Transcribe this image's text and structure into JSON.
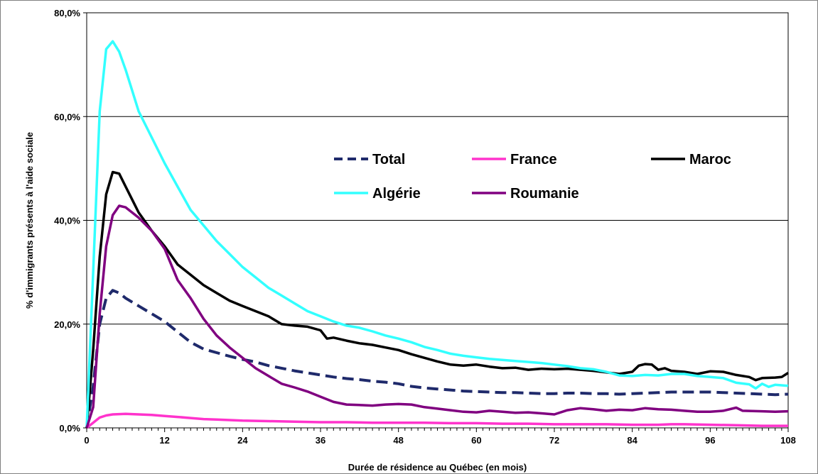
{
  "chart_data": {
    "type": "line",
    "title": "",
    "xlabel": "Durée de résidence au Québec (en mois)",
    "ylabel": "% d'immigrants présents à l'aide sociale",
    "xlim": [
      0,
      108
    ],
    "ylim": [
      0,
      80
    ],
    "x_ticks": [
      "0",
      "12",
      "24",
      "36",
      "48",
      "60",
      "72",
      "84",
      "96",
      "108"
    ],
    "y_ticks": [
      "0,0%",
      "20,0%",
      "40,0%",
      "60,0%",
      "80,0%"
    ],
    "grid": "horizontal",
    "legend_position": "upper-right",
    "series": [
      {
        "name": "Total",
        "color": "#1f2a6b",
        "style": "dashed",
        "points": [
          [
            0,
            0
          ],
          [
            1,
            8
          ],
          [
            2,
            20
          ],
          [
            3,
            25
          ],
          [
            4,
            26.5
          ],
          [
            5,
            26
          ],
          [
            6,
            25
          ],
          [
            8,
            23.5
          ],
          [
            10,
            22
          ],
          [
            12,
            20.5
          ],
          [
            14,
            18.5
          ],
          [
            16,
            16.5
          ],
          [
            18,
            15.2
          ],
          [
            20,
            14.5
          ],
          [
            22,
            13.8
          ],
          [
            24,
            13.2
          ],
          [
            26,
            12.7
          ],
          [
            28,
            12
          ],
          [
            30,
            11.5
          ],
          [
            32,
            11
          ],
          [
            34,
            10.6
          ],
          [
            36,
            10.2
          ],
          [
            38,
            9.8
          ],
          [
            40,
            9.5
          ],
          [
            42,
            9.3
          ],
          [
            44,
            9
          ],
          [
            46,
            8.8
          ],
          [
            48,
            8.5
          ],
          [
            50,
            8
          ],
          [
            52,
            7.7
          ],
          [
            54,
            7.5
          ],
          [
            56,
            7.3
          ],
          [
            58,
            7.1
          ],
          [
            60,
            7
          ],
          [
            62,
            6.9
          ],
          [
            64,
            6.8
          ],
          [
            66,
            6.8
          ],
          [
            68,
            6.7
          ],
          [
            70,
            6.6
          ],
          [
            72,
            6.6
          ],
          [
            74,
            6.7
          ],
          [
            76,
            6.7
          ],
          [
            78,
            6.6
          ],
          [
            80,
            6.6
          ],
          [
            82,
            6.5
          ],
          [
            84,
            6.6
          ],
          [
            86,
            6.7
          ],
          [
            88,
            6.8
          ],
          [
            90,
            6.9
          ],
          [
            92,
            6.9
          ],
          [
            94,
            6.9
          ],
          [
            96,
            6.9
          ],
          [
            98,
            6.8
          ],
          [
            100,
            6.7
          ],
          [
            102,
            6.6
          ],
          [
            104,
            6.5
          ],
          [
            106,
            6.4
          ],
          [
            108,
            6.5
          ]
        ]
      },
      {
        "name": "France",
        "color": "#ff33cc",
        "style": "solid",
        "points": [
          [
            0,
            0
          ],
          [
            1,
            1
          ],
          [
            2,
            2
          ],
          [
            3,
            2.4
          ],
          [
            4,
            2.6
          ],
          [
            6,
            2.7
          ],
          [
            8,
            2.6
          ],
          [
            10,
            2.5
          ],
          [
            12,
            2.3
          ],
          [
            14,
            2.1
          ],
          [
            16,
            1.9
          ],
          [
            18,
            1.7
          ],
          [
            20,
            1.6
          ],
          [
            22,
            1.5
          ],
          [
            24,
            1.4
          ],
          [
            28,
            1.3
          ],
          [
            32,
            1.2
          ],
          [
            36,
            1.1
          ],
          [
            40,
            1.1
          ],
          [
            44,
            1
          ],
          [
            48,
            1
          ],
          [
            52,
            1
          ],
          [
            56,
            0.9
          ],
          [
            60,
            0.9
          ],
          [
            64,
            0.8
          ],
          [
            68,
            0.8
          ],
          [
            72,
            0.7
          ],
          [
            76,
            0.7
          ],
          [
            80,
            0.7
          ],
          [
            84,
            0.6
          ],
          [
            88,
            0.6
          ],
          [
            90,
            0.7
          ],
          [
            92,
            0.7
          ],
          [
            96,
            0.6
          ],
          [
            100,
            0.5
          ],
          [
            104,
            0.4
          ],
          [
            108,
            0.4
          ]
        ]
      },
      {
        "name": "Maroc",
        "color": "#000000",
        "style": "solid",
        "points": [
          [
            0,
            0
          ],
          [
            1,
            15
          ],
          [
            2,
            33
          ],
          [
            3,
            45
          ],
          [
            4,
            49.3
          ],
          [
            5,
            49
          ],
          [
            6,
            46.5
          ],
          [
            7,
            44
          ],
          [
            8,
            41.5
          ],
          [
            10,
            38
          ],
          [
            12,
            35
          ],
          [
            14,
            31.5
          ],
          [
            16,
            29.5
          ],
          [
            18,
            27.5
          ],
          [
            20,
            26
          ],
          [
            22,
            24.5
          ],
          [
            24,
            23.5
          ],
          [
            26,
            22.5
          ],
          [
            28,
            21.5
          ],
          [
            30,
            20
          ],
          [
            32,
            19.7
          ],
          [
            34,
            19.5
          ],
          [
            36,
            18.8
          ],
          [
            37,
            17.2
          ],
          [
            38,
            17.4
          ],
          [
            40,
            16.8
          ],
          [
            42,
            16.3
          ],
          [
            44,
            16
          ],
          [
            46,
            15.5
          ],
          [
            48,
            15
          ],
          [
            50,
            14.2
          ],
          [
            52,
            13.5
          ],
          [
            54,
            12.8
          ],
          [
            56,
            12.2
          ],
          [
            58,
            12
          ],
          [
            60,
            12.2
          ],
          [
            62,
            11.8
          ],
          [
            64,
            11.5
          ],
          [
            66,
            11.6
          ],
          [
            68,
            11.2
          ],
          [
            70,
            11.4
          ],
          [
            72,
            11.3
          ],
          [
            74,
            11.4
          ],
          [
            76,
            11.2
          ],
          [
            78,
            11
          ],
          [
            80,
            10.7
          ],
          [
            82,
            10.4
          ],
          [
            84,
            10.8
          ],
          [
            85,
            12
          ],
          [
            86,
            12.3
          ],
          [
            87,
            12.2
          ],
          [
            88,
            11.2
          ],
          [
            89,
            11.5
          ],
          [
            90,
            11
          ],
          [
            92,
            10.8
          ],
          [
            94,
            10.4
          ],
          [
            96,
            10.9
          ],
          [
            98,
            10.8
          ],
          [
            100,
            10.2
          ],
          [
            102,
            9.8
          ],
          [
            103,
            9.2
          ],
          [
            104,
            9.6
          ],
          [
            106,
            9.7
          ],
          [
            107,
            9.8
          ],
          [
            108,
            10.6
          ]
        ]
      },
      {
        "name": "Algérie",
        "color": "#33ffff",
        "style": "solid",
        "points": [
          [
            0,
            0
          ],
          [
            1,
            30
          ],
          [
            2,
            61
          ],
          [
            3,
            73
          ],
          [
            4,
            74.5
          ],
          [
            5,
            72.5
          ],
          [
            6,
            69
          ],
          [
            7,
            65
          ],
          [
            8,
            61
          ],
          [
            10,
            56
          ],
          [
            12,
            51
          ],
          [
            14,
            46.5
          ],
          [
            16,
            42
          ],
          [
            18,
            39
          ],
          [
            20,
            36
          ],
          [
            22,
            33.5
          ],
          [
            24,
            31
          ],
          [
            26,
            29
          ],
          [
            28,
            27
          ],
          [
            30,
            25.5
          ],
          [
            32,
            24
          ],
          [
            34,
            22.5
          ],
          [
            36,
            21.5
          ],
          [
            38,
            20.5
          ],
          [
            40,
            19.7
          ],
          [
            42,
            19.3
          ],
          [
            44,
            18.6
          ],
          [
            46,
            17.8
          ],
          [
            48,
            17.2
          ],
          [
            50,
            16.5
          ],
          [
            52,
            15.6
          ],
          [
            54,
            15
          ],
          [
            56,
            14.3
          ],
          [
            58,
            13.9
          ],
          [
            60,
            13.6
          ],
          [
            62,
            13.3
          ],
          [
            64,
            13.1
          ],
          [
            66,
            12.9
          ],
          [
            68,
            12.7
          ],
          [
            70,
            12.5
          ],
          [
            72,
            12.2
          ],
          [
            74,
            11.9
          ],
          [
            76,
            11.5
          ],
          [
            78,
            11.3
          ],
          [
            80,
            10.8
          ],
          [
            82,
            10.1
          ],
          [
            84,
            10
          ],
          [
            86,
            10.2
          ],
          [
            88,
            10.1
          ],
          [
            90,
            10.4
          ],
          [
            92,
            10.4
          ],
          [
            94,
            10
          ],
          [
            96,
            9.8
          ],
          [
            98,
            9.6
          ],
          [
            100,
            8.7
          ],
          [
            102,
            8.4
          ],
          [
            103,
            7.6
          ],
          [
            104,
            8.5
          ],
          [
            105,
            7.9
          ],
          [
            106,
            8.3
          ],
          [
            108,
            8.1
          ]
        ]
      },
      {
        "name": "Roumanie",
        "color": "#800080",
        "style": "solid",
        "points": [
          [
            0,
            0
          ],
          [
            1,
            4
          ],
          [
            2,
            22
          ],
          [
            3,
            35
          ],
          [
            4,
            41
          ],
          [
            5,
            42.8
          ],
          [
            6,
            42.5
          ],
          [
            8,
            40.5
          ],
          [
            10,
            38
          ],
          [
            12,
            34.5
          ],
          [
            14,
            28.5
          ],
          [
            16,
            25
          ],
          [
            18,
            21
          ],
          [
            20,
            17.8
          ],
          [
            22,
            15.5
          ],
          [
            24,
            13.5
          ],
          [
            26,
            11.5
          ],
          [
            28,
            10
          ],
          [
            30,
            8.5
          ],
          [
            32,
            7.8
          ],
          [
            34,
            7
          ],
          [
            36,
            6
          ],
          [
            38,
            5
          ],
          [
            40,
            4.5
          ],
          [
            42,
            4.4
          ],
          [
            44,
            4.3
          ],
          [
            46,
            4.5
          ],
          [
            48,
            4.6
          ],
          [
            50,
            4.5
          ],
          [
            52,
            4
          ],
          [
            54,
            3.7
          ],
          [
            56,
            3.4
          ],
          [
            58,
            3.1
          ],
          [
            60,
            3
          ],
          [
            62,
            3.3
          ],
          [
            64,
            3.1
          ],
          [
            66,
            2.9
          ],
          [
            68,
            3
          ],
          [
            70,
            2.8
          ],
          [
            72,
            2.6
          ],
          [
            74,
            3.4
          ],
          [
            76,
            3.8
          ],
          [
            78,
            3.6
          ],
          [
            80,
            3.3
          ],
          [
            82,
            3.5
          ],
          [
            84,
            3.4
          ],
          [
            86,
            3.8
          ],
          [
            88,
            3.6
          ],
          [
            90,
            3.5
          ],
          [
            92,
            3.3
          ],
          [
            94,
            3.1
          ],
          [
            96,
            3.1
          ],
          [
            98,
            3.3
          ],
          [
            100,
            3.9
          ],
          [
            101,
            3.3
          ],
          [
            104,
            3.2
          ],
          [
            106,
            3.1
          ],
          [
            108,
            3.2
          ]
        ]
      }
    ]
  }
}
